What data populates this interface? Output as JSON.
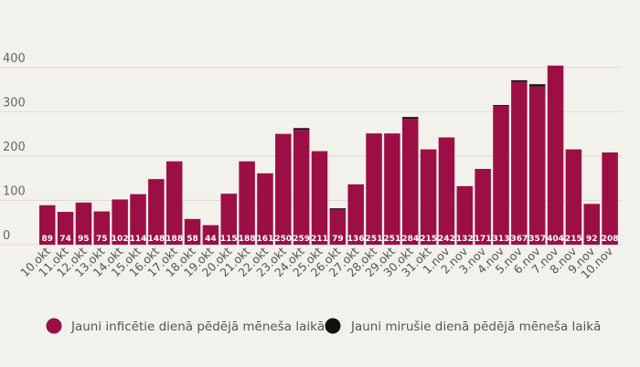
{
  "chart_data": {
    "type": "bar",
    "stacked": true,
    "categories": [
      "10.okt",
      "11.okt",
      "12.okt",
      "13.okt",
      "14.okt",
      "15.okt",
      "16.okt",
      "17.okt",
      "18.okt",
      "19.okt",
      "20.okt",
      "21.okt",
      "22.okt",
      "23.okt",
      "24.okt",
      "25.okt",
      "26.okt",
      "27.okt",
      "28.okt",
      "29.okt",
      "30.okt",
      "31.okt",
      "1.nov",
      "2.nov",
      "3.nov",
      "4.nov",
      "5.nov",
      "6.nov",
      "7.nov",
      "8.nov",
      "9.nov",
      "10.nov"
    ],
    "series": [
      {
        "name": "Jauni inficētie dienā pēdējā mēneša laikā",
        "color": "#9c0f45",
        "values": [
          89,
          74,
          95,
          75,
          102,
          114,
          148,
          188,
          58,
          44,
          115,
          188,
          161,
          250,
          259,
          211,
          79,
          136,
          251,
          251,
          284,
          215,
          242,
          132,
          171,
          313,
          367,
          357,
          404,
          215,
          92,
          208
        ]
      },
      {
        "name": "Jauni mirušie dienā pēdējā mēneša laikā",
        "color": "#111111",
        "values": [
          0,
          0,
          0,
          0,
          0,
          0,
          0,
          0,
          0,
          0,
          0,
          0,
          0,
          0,
          4,
          0,
          3,
          0,
          0,
          0,
          4,
          0,
          0,
          0,
          0,
          2,
          4,
          5,
          0,
          0,
          0,
          0
        ]
      }
    ],
    "y_ticks": [
      0,
      100,
      200,
      300,
      400
    ],
    "ylim": [
      0,
      420
    ],
    "grid": true,
    "legend_position": "bottom",
    "title": "",
    "xlabel": "",
    "ylabel": ""
  }
}
